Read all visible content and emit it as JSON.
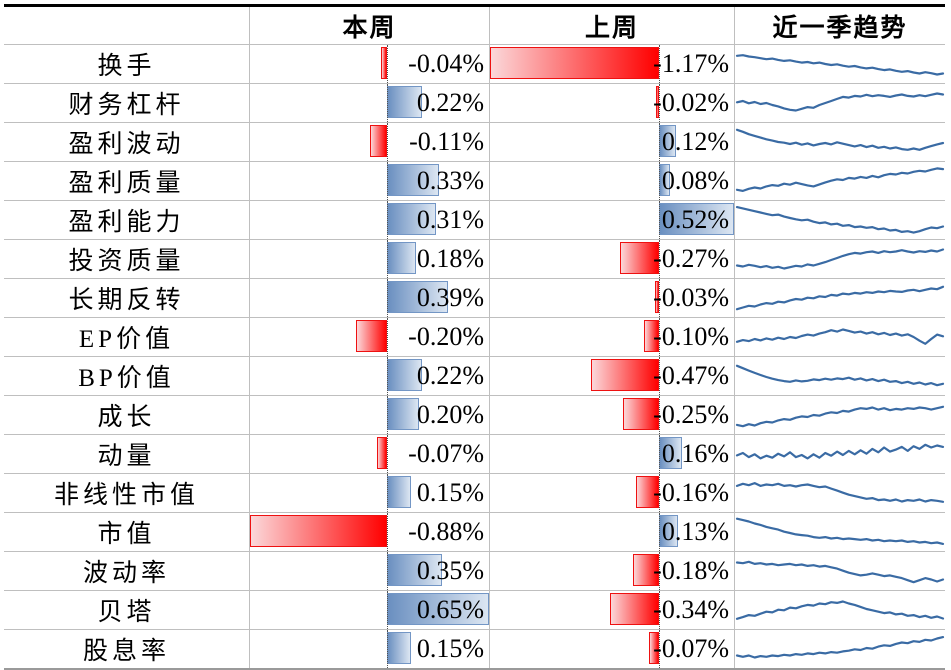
{
  "colors": {
    "bar_positive_start": "#6a8fc0",
    "bar_positive_end": "#dce6f2",
    "bar_positive_border": "#7396c5",
    "bar_negative_start": "#fbd8da",
    "bar_negative_end": "#ff0000",
    "bar_negative_border": "#ee1111",
    "sparkline": "#3a6ba4",
    "gridline": "#bfbfbf",
    "top_border": "#000000",
    "zero_axis": "#505050",
    "text": "#000000"
  },
  "chart_data": {
    "type": "table",
    "title": "",
    "col_headers": [
      "",
      "本周",
      "上周",
      "近一季趋势"
    ],
    "bar_scaling": "per-column automatic min/max, zero axis dashed",
    "columns": {
      "this_week": {
        "label": "本周",
        "min": -0.88,
        "max": 0.65
      },
      "last_week": {
        "label": "上周",
        "min": -1.17,
        "max": 0.52
      }
    },
    "rows": [
      {
        "label": "换手",
        "this_week": {
          "value": -0.04,
          "display": "-0.04%"
        },
        "last_week": {
          "value": -1.17,
          "display": "-1.17%"
        },
        "spark": [
          74,
          76,
          72,
          70,
          67,
          64,
          66,
          62,
          59,
          61,
          57,
          54,
          56,
          52,
          54,
          50,
          47,
          49,
          45,
          42,
          44,
          40,
          37,
          39,
          35,
          32,
          34,
          30,
          27,
          29,
          25,
          22,
          26,
          23,
          19,
          22
        ]
      },
      {
        "label": "财务杠杆",
        "this_week": {
          "value": 0.22,
          "display": "0.22%"
        },
        "last_week": {
          "value": -0.02,
          "display": "-0.02%"
        },
        "spark": [
          52,
          56,
          49,
          53,
          47,
          50,
          44,
          40,
          34,
          30,
          28,
          33,
          38,
          36,
          44,
          50,
          56,
          62,
          68,
          66,
          71,
          69,
          74,
          70,
          73,
          71,
          68,
          72,
          75,
          71,
          69,
          73,
          70,
          74,
          78,
          75
        ]
      },
      {
        "label": "盈利波动",
        "this_week": {
          "value": -0.11,
          "display": "-0.11%"
        },
        "last_week": {
          "value": 0.12,
          "display": "0.12%"
        },
        "spark": [
          86,
          80,
          73,
          68,
          63,
          58,
          54,
          50,
          48,
          44,
          48,
          42,
          46,
          40,
          44,
          47,
          43,
          49,
          45,
          41,
          37,
          41,
          35,
          39,
          33,
          36,
          31,
          34,
          29,
          27,
          31,
          27,
          33,
          38,
          43,
          47
        ]
      },
      {
        "label": "盈利质量",
        "this_week": {
          "value": 0.33,
          "display": "0.33%"
        },
        "last_week": {
          "value": 0.08,
          "display": "0.08%"
        },
        "spark": [
          24,
          21,
          27,
          31,
          28,
          34,
          38,
          36,
          42,
          39,
          45,
          41,
          37,
          34,
          40,
          46,
          51,
          55,
          53,
          59,
          57,
          62,
          59,
          65,
          61,
          67,
          71,
          69,
          74,
          72,
          77,
          80,
          78,
          83,
          87,
          85
        ]
      },
      {
        "label": "盈利能力",
        "this_week": {
          "value": 0.31,
          "display": "0.31%"
        },
        "last_week": {
          "value": 0.52,
          "display": "0.52%"
        },
        "spark": [
          88,
          84,
          80,
          76,
          72,
          68,
          64,
          66,
          60,
          56,
          52,
          49,
          51,
          45,
          41,
          43,
          37,
          39,
          33,
          35,
          29,
          31,
          27,
          29,
          23,
          25,
          19,
          21,
          15,
          17,
          13,
          17,
          23,
          28,
          26,
          31
        ]
      },
      {
        "label": "投资质量",
        "this_week": {
          "value": 0.18,
          "display": "0.18%"
        },
        "last_week": {
          "value": -0.27,
          "display": "-0.27%"
        },
        "spark": [
          31,
          28,
          33,
          30,
          26,
          29,
          24,
          27,
          22,
          26,
          30,
          28,
          34,
          31,
          36,
          41,
          47,
          53,
          59,
          64,
          68,
          66,
          70,
          72,
          68,
          73,
          70,
          72,
          76,
          72,
          69,
          73,
          71,
          75,
          72,
          78
        ]
      },
      {
        "label": "长期反转",
        "this_week": {
          "value": 0.39,
          "display": "0.39%"
        },
        "last_week": {
          "value": -0.03,
          "display": "-0.03%"
        },
        "spark": [
          17,
          22,
          27,
          25,
          31,
          35,
          33,
          39,
          37,
          43,
          47,
          45,
          51,
          49,
          55,
          53,
          59,
          57,
          63,
          61,
          65,
          63,
          67,
          65,
          69,
          67,
          71,
          69,
          68,
          72,
          74,
          70,
          74,
          78,
          76,
          83
        ]
      },
      {
        "label": "EP价值",
        "this_week": {
          "value": -0.2,
          "display": "-0.20%"
        },
        "last_week": {
          "value": -0.1,
          "display": "-0.10%"
        },
        "spark": [
          36,
          41,
          38,
          44,
          40,
          46,
          42,
          48,
          44,
          50,
          47,
          53,
          57,
          54,
          60,
          64,
          70,
          66,
          72,
          68,
          63,
          66,
          60,
          64,
          58,
          62,
          56,
          60,
          54,
          58,
          50,
          39,
          30,
          44,
          57,
          52
        ]
      },
      {
        "label": "BP价值",
        "this_week": {
          "value": 0.22,
          "display": "0.22%"
        },
        "last_week": {
          "value": -0.47,
          "display": "-0.47%"
        },
        "spark": [
          80,
          73,
          66,
          59,
          53,
          47,
          42,
          38,
          35,
          33,
          37,
          34,
          36,
          40,
          38,
          42,
          39,
          43,
          41,
          45,
          39,
          43,
          37,
          41,
          35,
          39,
          33,
          35,
          29,
          33,
          27,
          31,
          25,
          29,
          23,
          27
        ]
      },
      {
        "label": "成长",
        "this_week": {
          "value": 0.2,
          "display": "0.20%"
        },
        "last_week": {
          "value": -0.25,
          "display": "-0.25%"
        },
        "spark": [
          21,
          17,
          23,
          19,
          26,
          30,
          28,
          34,
          38,
          36,
          42,
          46,
          44,
          50,
          48,
          54,
          58,
          56,
          62,
          60,
          66,
          70,
          68,
          72,
          66,
          70,
          64,
          68,
          66,
          70,
          68,
          72,
          70,
          66,
          70,
          74
        ]
      },
      {
        "label": "动量",
        "this_week": {
          "value": -0.07,
          "display": "-0.07%"
        },
        "last_week": {
          "value": 0.16,
          "display": "0.16%"
        },
        "spark": [
          46,
          53,
          41,
          49,
          37,
          45,
          39,
          51,
          43,
          55,
          41,
          47,
          37,
          49,
          39,
          53,
          45,
          57,
          47,
          59,
          49,
          61,
          51,
          65,
          55,
          69,
          57,
          63,
          71,
          59,
          73,
          65,
          77,
          69,
          75,
          71
        ]
      },
      {
        "label": "非线性市值",
        "this_week": {
          "value": 0.15,
          "display": "0.15%"
        },
        "last_week": {
          "value": -0.16,
          "display": "-0.16%"
        },
        "spark": [
          71,
          77,
          73,
          79,
          71,
          75,
          73,
          77,
          71,
          73,
          69,
          73,
          75,
          71,
          67,
          69,
          63,
          57,
          51,
          45,
          41,
          37,
          33,
          35,
          29,
          31,
          27,
          31,
          25,
          29,
          27,
          31,
          25,
          29,
          27,
          24
        ]
      },
      {
        "label": "市值",
        "this_week": {
          "value": -0.88,
          "display": "-0.88%"
        },
        "last_week": {
          "value": 0.13,
          "display": "0.13%"
        },
        "spark": [
          89,
          85,
          81,
          75,
          71,
          65,
          61,
          57,
          51,
          47,
          43,
          41,
          39,
          35,
          33,
          35,
          31,
          33,
          29,
          31,
          29,
          27,
          29,
          25,
          27,
          23,
          25,
          23,
          25,
          21,
          23,
          19,
          21,
          17,
          19,
          15
        ]
      },
      {
        "label": "波动率",
        "this_week": {
          "value": 0.35,
          "display": "0.35%"
        },
        "last_week": {
          "value": -0.18,
          "display": "-0.18%"
        },
        "spark": [
          75,
          73,
          77,
          71,
          73,
          69,
          71,
          67,
          69,
          71,
          67,
          69,
          65,
          67,
          63,
          65,
          61,
          57,
          51,
          45,
          41,
          37,
          39,
          43,
          39,
          35,
          37,
          33,
          29,
          23,
          17,
          23,
          29,
          25,
          19,
          25
        ]
      },
      {
        "label": "贝塔",
        "this_week": {
          "value": 0.65,
          "display": "0.65%"
        },
        "last_week": {
          "value": -0.34,
          "display": "-0.34%"
        },
        "spark": [
          24,
          29,
          35,
          33,
          39,
          45,
          43,
          51,
          49,
          57,
          55,
          61,
          65,
          63,
          69,
          67,
          73,
          71,
          75,
          69,
          65,
          59,
          53,
          49,
          45,
          41,
          43,
          37,
          39,
          33,
          35,
          29,
          33,
          27,
          31,
          25
        ]
      },
      {
        "label": "股息率",
        "this_week": {
          "value": 0.15,
          "display": "0.15%"
        },
        "last_week": {
          "value": -0.07,
          "display": "-0.07%"
        },
        "spark": [
          31,
          27,
          31,
          25,
          29,
          27,
          31,
          29,
          33,
          31,
          35,
          33,
          37,
          35,
          39,
          37,
          41,
          39,
          43,
          45,
          49,
          47,
          53,
          51,
          57,
          61,
          59,
          65,
          69,
          67,
          73,
          71,
          77,
          75,
          81,
          85
        ]
      }
    ]
  }
}
